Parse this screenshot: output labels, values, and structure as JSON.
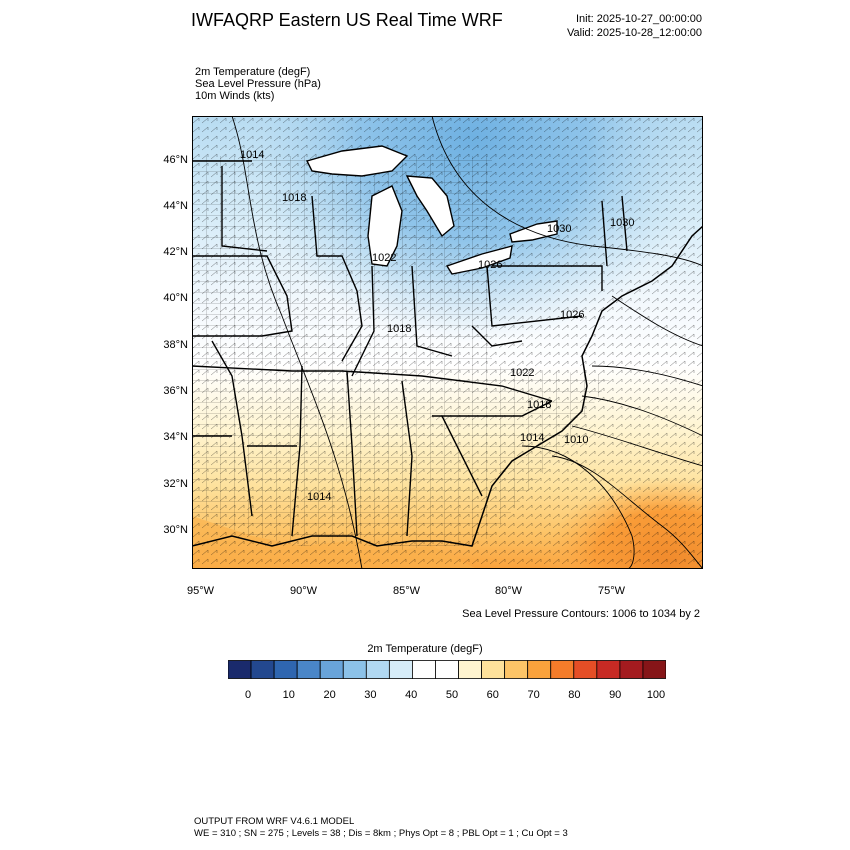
{
  "header": {
    "title": "IWFAQRP Eastern US Real Time WRF",
    "init": "Init: 2025-10-27_00:00:00",
    "valid": "Valid: 2025-10-28_12:00:00"
  },
  "variables": [
    "2m Temperature   (degF)",
    "Sea Level Pressure   (hPa)",
    "10m Winds   (kts)"
  ],
  "map": {
    "lat_labels": [
      "46°N",
      "44°N",
      "42°N",
      "40°N",
      "38°N",
      "36°N",
      "34°N",
      "32°N",
      "30°N"
    ],
    "lon_labels": [
      "95°W",
      "90°W",
      "85°W",
      "80°W",
      "75°W"
    ],
    "isobar_labels": [
      "1014",
      "1018",
      "1022",
      "1026",
      "1030",
      "1030",
      "1018",
      "1026",
      "1022",
      "1018",
      "1014",
      "1010",
      "1014"
    ],
    "contour_note": "Sea Level Pressure Contours: 1006 to 1034 by 2"
  },
  "colorbar": {
    "title": "2m Temperature  (degF)",
    "tick_labels": [
      "0",
      "10",
      "20",
      "30",
      "40",
      "50",
      "60",
      "70",
      "80",
      "90",
      "100"
    ],
    "colors": [
      "#1a2a6c",
      "#23488f",
      "#2f66b0",
      "#4a86c8",
      "#69a4da",
      "#8cc2e9",
      "#b1d8f2",
      "#d6ecf8",
      "#ffffff",
      "#ffffff",
      "#fff4cf",
      "#fee19b",
      "#fdc467",
      "#faa23c",
      "#f47c2a",
      "#e54e26",
      "#c72a24",
      "#a41b1f",
      "#861518"
    ]
  },
  "footer": {
    "line1": "OUTPUT FROM WRF V4.6.1 MODEL",
    "line2": "WE = 310 ; SN = 275 ; Levels = 38 ; Dis = 8km ; Phys Opt = 8 ; PBL Opt = 1 ; Cu Opt = 3"
  }
}
